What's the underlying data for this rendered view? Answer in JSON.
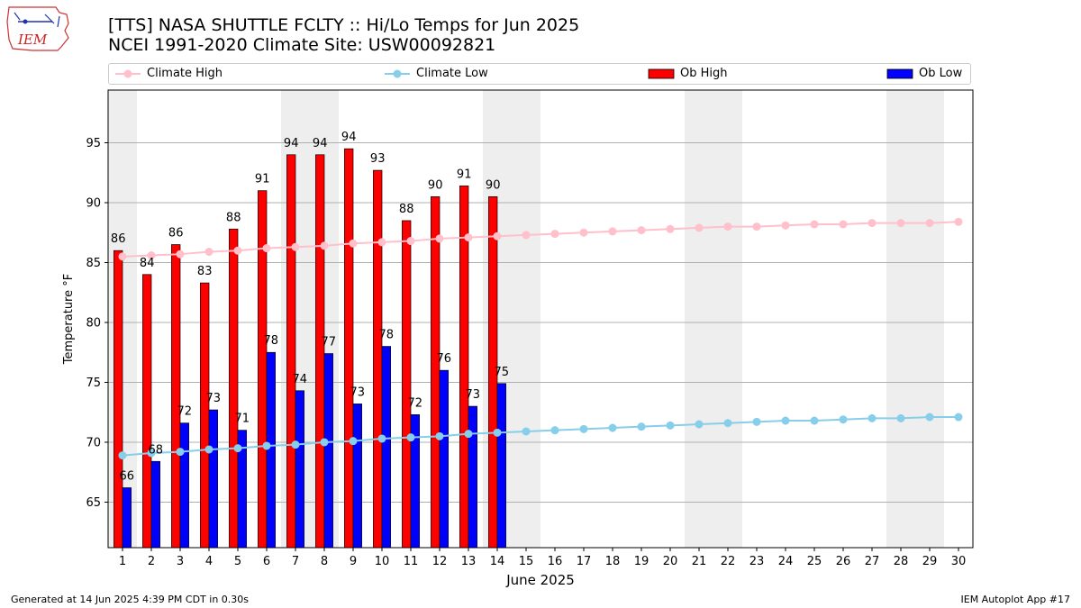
{
  "header": {
    "title": "[TTS] NASA SHUTTLE FCLTY :: Hi/Lo Temps for Jun 2025",
    "subtitle": "NCEI 1991-2020 Climate Site: USW00092821",
    "logo_text": "IEM"
  },
  "footer": {
    "generated": "Generated at 14 Jun 2025 4:39 PM CDT in 0.30s",
    "app": "IEM Autoplot App #17"
  },
  "chart_data": {
    "type": "bar",
    "title": "[TTS] NASA SHUTTLE FCLTY :: Hi/Lo Temps for Jun 2025",
    "subtitle": "NCEI 1991-2020 Climate Site: USW00092821",
    "xlabel": "June 2025",
    "ylabel": "Temperature °F",
    "xlim": [
      0.5,
      30.5
    ],
    "ylim": [
      61.2,
      99.4
    ],
    "yticks": [
      65,
      70,
      75,
      80,
      85,
      90,
      95
    ],
    "grid": "y",
    "legend_position": "top",
    "legend": [
      "Climate High",
      "Climate Low",
      "Ob High",
      "Ob Low"
    ],
    "weekend_days": [
      1,
      7,
      8,
      14,
      15,
      21,
      22,
      28,
      29
    ],
    "days": [
      1,
      2,
      3,
      4,
      5,
      6,
      7,
      8,
      9,
      10,
      11,
      12,
      13,
      14,
      15,
      16,
      17,
      18,
      19,
      20,
      21,
      22,
      23,
      24,
      25,
      26,
      27,
      28,
      29,
      30
    ],
    "ob_high": {
      "name": "Ob High",
      "color": "#ff0000",
      "values": [
        86.0,
        84.0,
        86.5,
        83.3,
        87.8,
        91.0,
        94.0,
        94.0,
        94.5,
        92.7,
        88.5,
        90.5,
        91.4,
        90.5
      ],
      "labels": [
        "86",
        "84",
        "86",
        "83",
        "88",
        "91",
        "94",
        "94",
        "94",
        "93",
        "88",
        "90",
        "91",
        "90"
      ]
    },
    "ob_low": {
      "name": "Ob Low",
      "color": "#0000ff",
      "values": [
        66.2,
        68.4,
        71.6,
        72.7,
        71.0,
        77.5,
        74.3,
        77.4,
        73.2,
        78.0,
        72.3,
        76.0,
        73.0,
        74.9
      ],
      "labels": [
        "66",
        "68",
        "72",
        "73",
        "71",
        "78",
        "74",
        "77",
        "73",
        "78",
        "72",
        "76",
        "73",
        "75"
      ]
    },
    "climate_high": {
      "name": "Climate High",
      "color": "#ffc0cb",
      "values": [
        85.5,
        85.6,
        85.7,
        85.9,
        86.0,
        86.2,
        86.3,
        86.4,
        86.6,
        86.7,
        86.8,
        87.0,
        87.1,
        87.2,
        87.3,
        87.4,
        87.5,
        87.6,
        87.7,
        87.8,
        87.9,
        88.0,
        88.0,
        88.1,
        88.2,
        88.2,
        88.3,
        88.3,
        88.3,
        88.4
      ]
    },
    "climate_low": {
      "name": "Climate Low",
      "color": "#87ceeb",
      "values": [
        68.9,
        69.1,
        69.2,
        69.4,
        69.5,
        69.7,
        69.8,
        70.0,
        70.1,
        70.3,
        70.4,
        70.5,
        70.7,
        70.8,
        70.9,
        71.0,
        71.1,
        71.2,
        71.3,
        71.4,
        71.5,
        71.6,
        71.7,
        71.8,
        71.8,
        71.9,
        72.0,
        72.0,
        72.1,
        72.1
      ]
    }
  }
}
